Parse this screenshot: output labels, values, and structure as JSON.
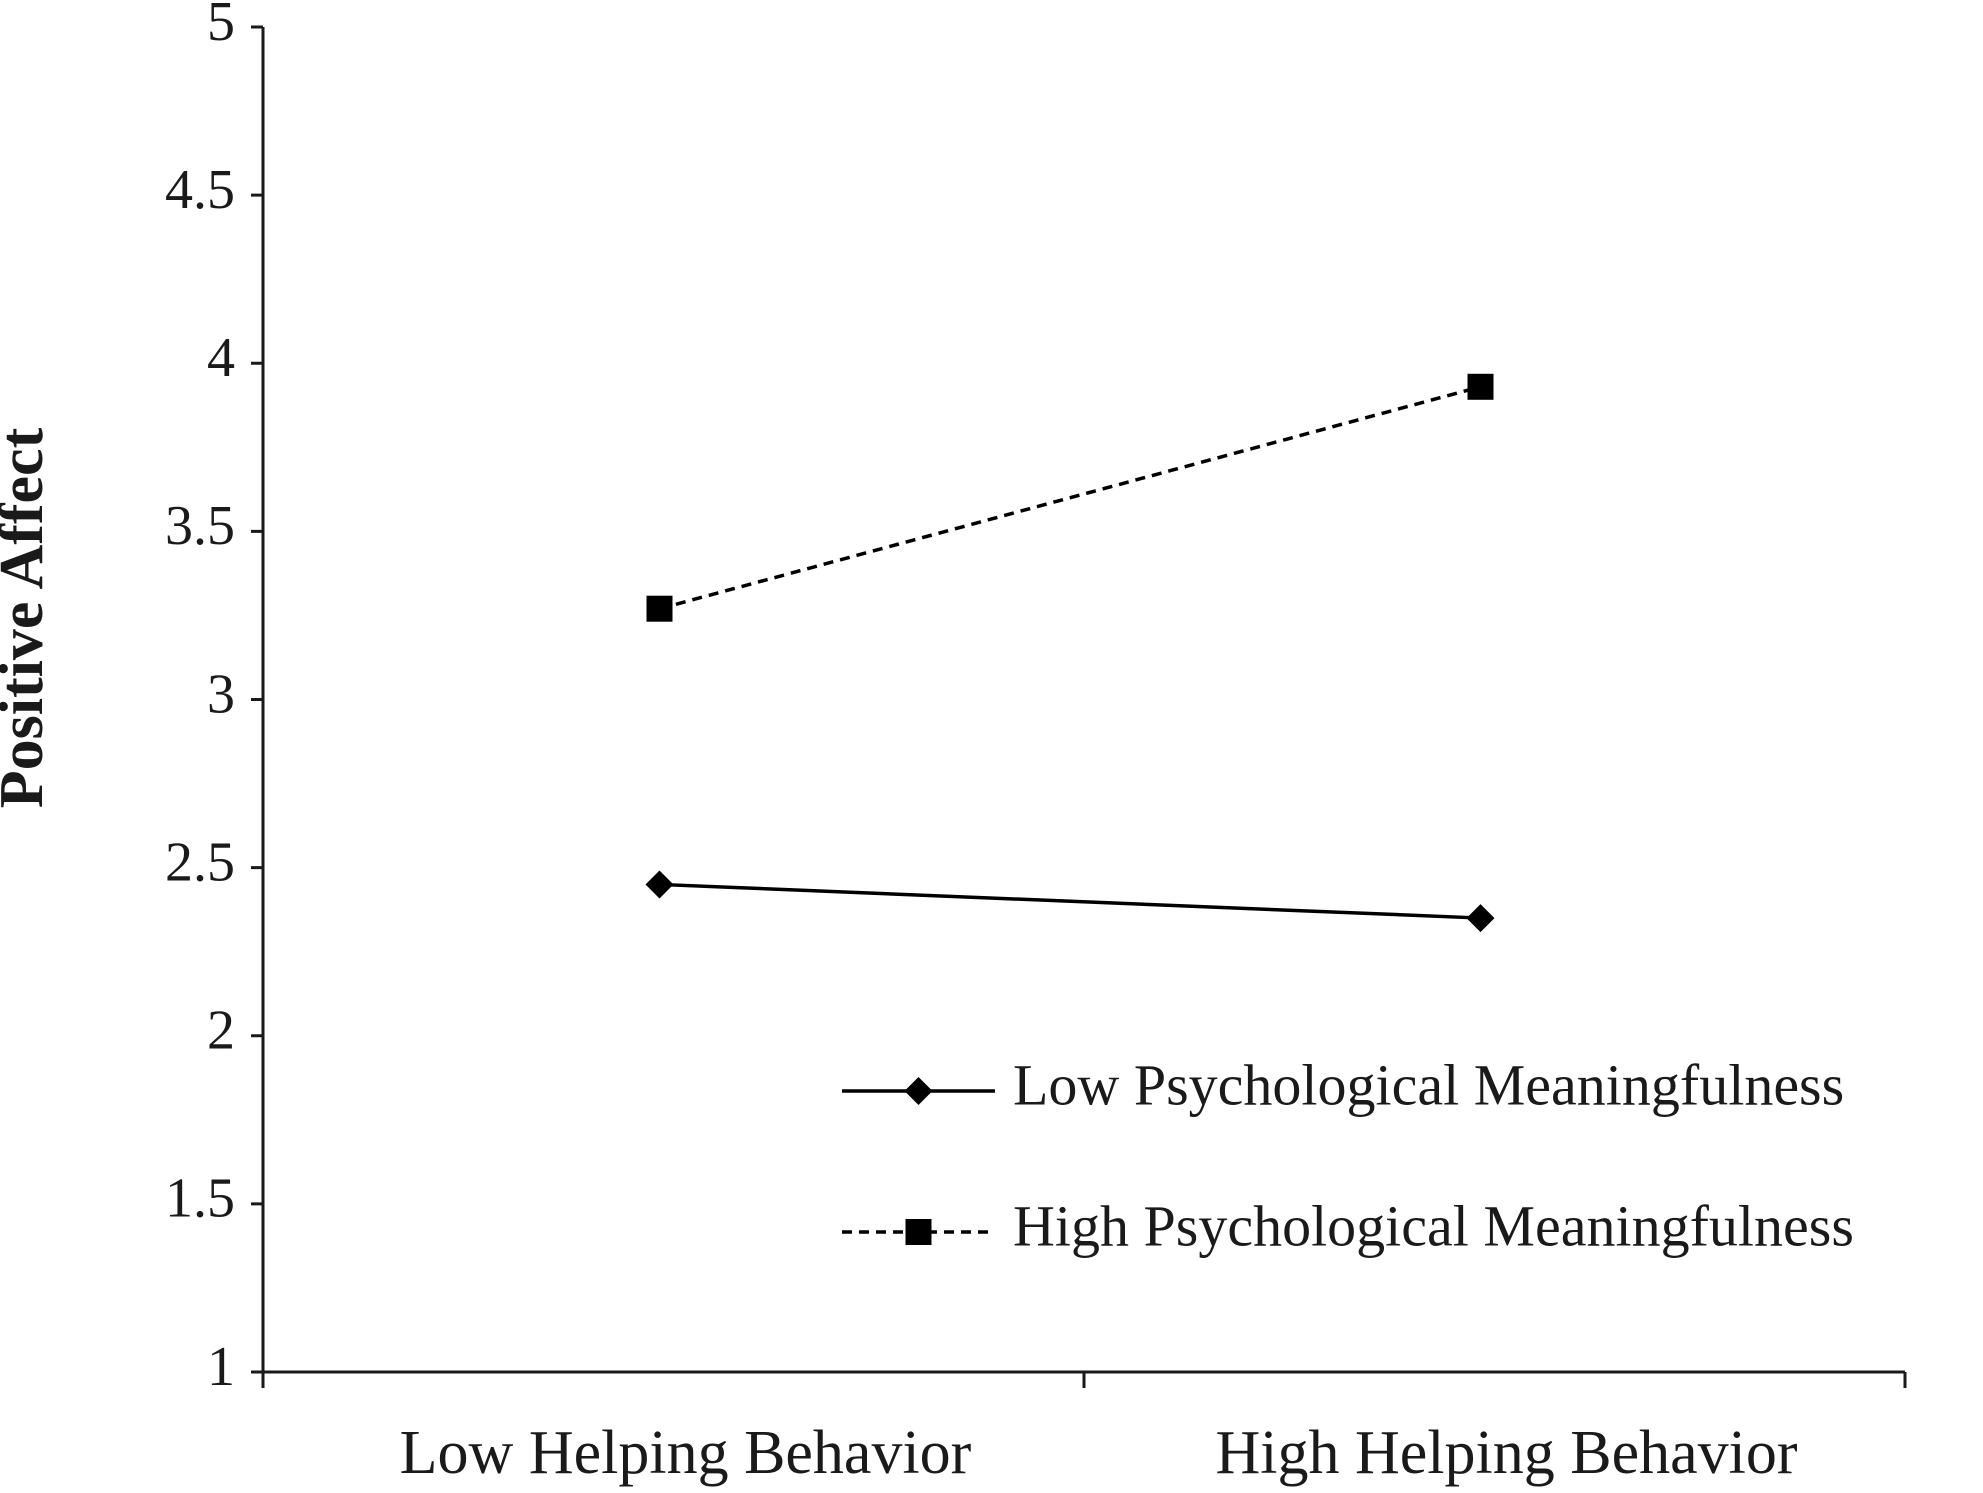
{
  "chart_data": {
    "type": "line",
    "categories": [
      "Low Helping Behavior",
      "High Helping Behavior"
    ],
    "series": [
      {
        "name": "Low Psychological Meaningfulness",
        "values": [
          2.45,
          2.35
        ],
        "marker": "diamond",
        "line_style": "solid",
        "color": "#000000"
      },
      {
        "name": "High Psychological Meaningfulness",
        "values": [
          3.27,
          3.93
        ],
        "marker": "square",
        "line_style": "dashed",
        "color": "#000000"
      }
    ],
    "title": "",
    "xlabel": "",
    "ylabel": "Positive Affect",
    "ylim": [
      1,
      5
    ],
    "yticks": [
      "1",
      "1.5",
      "2",
      "2.5",
      "3",
      "3.5",
      "4",
      "4.5",
      "5"
    ],
    "grid": false,
    "legend_position": "lower-right inside plot"
  }
}
